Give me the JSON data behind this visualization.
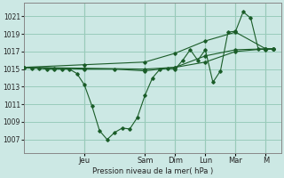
{
  "bg_color": "#cce8e4",
  "grid_color": "#99ccbb",
  "line_color": "#1a5c28",
  "marker_color": "#1a5c28",
  "ylabel": "Pression niveau de la mer( hPa )",
  "ylim": [
    1005.5,
    1022.5
  ],
  "yticks": [
    1007,
    1009,
    1011,
    1013,
    1015,
    1017,
    1019,
    1021
  ],
  "x_day_labels": [
    "Jeu",
    "Sam",
    "Dim",
    "Lun",
    "Mar",
    "M"
  ],
  "x_day_positions": [
    16,
    32,
    40,
    48,
    56,
    64
  ],
  "xlim": [
    0,
    68
  ],
  "vline_positions": [
    16,
    32,
    40,
    48,
    56,
    64
  ],
  "lines": {
    "line1_zigzag": {
      "x": [
        0,
        2,
        4,
        6,
        8,
        10,
        12,
        14,
        16,
        18,
        20,
        22,
        24,
        26,
        28,
        30,
        32,
        34,
        36,
        38,
        40,
        42,
        44,
        46,
        48,
        50,
        52,
        54,
        56,
        58,
        60,
        62,
        64,
        66
      ],
      "y": [
        1015.2,
        1015.1,
        1015.1,
        1015.0,
        1015.0,
        1015.0,
        1015.0,
        1014.5,
        1013.2,
        1010.8,
        1008.0,
        1007.0,
        1007.8,
        1008.3,
        1008.2,
        1009.5,
        1012.0,
        1014.0,
        1015.0,
        1015.1,
        1015.0,
        1016.0,
        1017.2,
        1016.0,
        1017.2,
        1013.5,
        1014.8,
        1019.2,
        1019.3,
        1021.5,
        1020.8,
        1017.3,
        1017.2,
        1017.3
      ]
    },
    "line2_mid": {
      "x": [
        0,
        8,
        16,
        24,
        32,
        40,
        48,
        56,
        64,
        66
      ],
      "y": [
        1015.2,
        1015.1,
        1015.0,
        1015.0,
        1014.8,
        1015.2,
        1016.5,
        1017.2,
        1017.3,
        1017.3
      ]
    },
    "line3_upper": {
      "x": [
        0,
        16,
        32,
        40,
        48,
        56,
        64,
        66
      ],
      "y": [
        1015.2,
        1015.5,
        1015.8,
        1016.8,
        1018.2,
        1019.2,
        1017.3,
        1017.3
      ]
    },
    "line4_lower": {
      "x": [
        0,
        16,
        32,
        40,
        48,
        56,
        64,
        66
      ],
      "y": [
        1015.2,
        1015.1,
        1015.0,
        1015.2,
        1015.8,
        1017.0,
        1017.3,
        1017.3
      ]
    }
  }
}
